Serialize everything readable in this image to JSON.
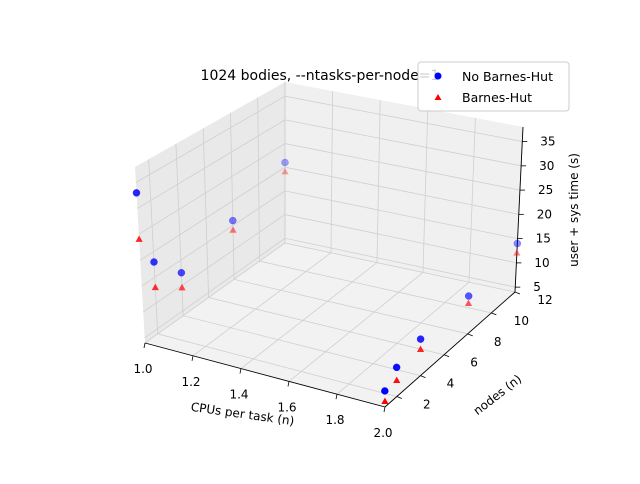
{
  "chart_data": {
    "type": "scatter3d",
    "title": "1024 bodies, --ntasks-per-node=1",
    "xlabel": "CPUs per task (n)",
    "ylabel": "nodes (n)",
    "zlabel": "user + sys time (s)",
    "x_ticks": [
      "1.0",
      "1.2",
      "1.4",
      "1.6",
      "1.8",
      "2.0"
    ],
    "y_ticks": [
      "2",
      "4",
      "6",
      "8",
      "10",
      "12"
    ],
    "z_ticks": [
      "5",
      "10",
      "15",
      "20",
      "25",
      "30",
      "35"
    ],
    "xlim": [
      1.0,
      2.0
    ],
    "ylim": [
      1,
      12
    ],
    "zlim": [
      4,
      38
    ],
    "grid": true,
    "legend_position": "top-right",
    "series": [
      {
        "name": "No Barnes-Hut",
        "marker": "circle",
        "color": "#0000ff",
        "points": [
          {
            "x": 1,
            "y": 1,
            "z": 33
          },
          {
            "x": 1,
            "y": 2,
            "z": 18
          },
          {
            "x": 1,
            "y": 4,
            "z": 12.5
          },
          {
            "x": 1,
            "y": 8,
            "z": 16
          },
          {
            "x": 1,
            "y": 12,
            "z": 21
          },
          {
            "x": 2,
            "y": 1,
            "z": 7
          },
          {
            "x": 2,
            "y": 2,
            "z": 9.5
          },
          {
            "x": 2,
            "y": 4,
            "z": 11
          },
          {
            "x": 2,
            "y": 8,
            "z": 11.5
          },
          {
            "x": 2,
            "y": 12,
            "z": 14
          }
        ]
      },
      {
        "name": "Barnes-Hut",
        "marker": "triangle",
        "color": "#ff0000",
        "points": [
          {
            "x": 1,
            "y": 1,
            "z": 24
          },
          {
            "x": 1,
            "y": 2,
            "z": 13
          },
          {
            "x": 1,
            "y": 4,
            "z": 9.5
          },
          {
            "x": 1,
            "y": 8,
            "z": 14
          },
          {
            "x": 1,
            "y": 12,
            "z": 19
          },
          {
            "x": 2,
            "y": 1,
            "z": 5
          },
          {
            "x": 2,
            "y": 2,
            "z": 7
          },
          {
            "x": 2,
            "y": 4,
            "z": 9
          },
          {
            "x": 2,
            "y": 8,
            "z": 10
          },
          {
            "x": 2,
            "y": 12,
            "z": 12
          }
        ]
      }
    ]
  }
}
